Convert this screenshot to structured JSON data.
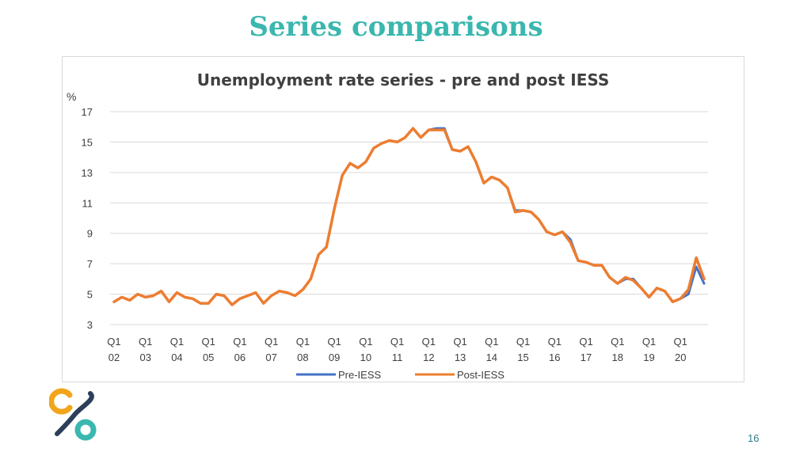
{
  "slide": {
    "title": "Series comparisons",
    "page_number": "16"
  },
  "colors": {
    "accent": "#3ab7ae",
    "pre_series": "#4472c4",
    "post_series": "#ed7d31",
    "logo_orange": "#f2a51a",
    "logo_teal": "#3ab7ae",
    "logo_navy": "#2c3e5a"
  },
  "chart_data": {
    "type": "line",
    "title": "Unemployment rate series - pre and post IESS",
    "ylabel": "%",
    "xlabel": "",
    "ylim": [
      3,
      17
    ],
    "yticks": [
      3,
      5,
      7,
      9,
      11,
      13,
      15,
      17
    ],
    "grid": true,
    "legend_position": "bottom",
    "x_tick_labels": [
      {
        "q": "Q1",
        "y": "02"
      },
      {
        "q": "Q1",
        "y": "03"
      },
      {
        "q": "Q1",
        "y": "04"
      },
      {
        "q": "Q1",
        "y": "05"
      },
      {
        "q": "Q1",
        "y": "06"
      },
      {
        "q": "Q1",
        "y": "07"
      },
      {
        "q": "Q1",
        "y": "08"
      },
      {
        "q": "Q1",
        "y": "09"
      },
      {
        "q": "Q1",
        "y": "10"
      },
      {
        "q": "Q1",
        "y": "11"
      },
      {
        "q": "Q1",
        "y": "12"
      },
      {
        "q": "Q1",
        "y": "13"
      },
      {
        "q": "Q1",
        "y": "14"
      },
      {
        "q": "Q1",
        "y": "15"
      },
      {
        "q": "Q1",
        "y": "16"
      },
      {
        "q": "Q1",
        "y": "17"
      },
      {
        "q": "Q1",
        "y": "18"
      },
      {
        "q": "Q1",
        "y": "19"
      },
      {
        "q": "Q1",
        "y": "20"
      }
    ],
    "x": [
      "Q1 02",
      "Q2 02",
      "Q3 02",
      "Q4 02",
      "Q1 03",
      "Q2 03",
      "Q3 03",
      "Q4 03",
      "Q1 04",
      "Q2 04",
      "Q3 04",
      "Q4 04",
      "Q1 05",
      "Q2 05",
      "Q3 05",
      "Q4 05",
      "Q1 06",
      "Q2 06",
      "Q3 06",
      "Q4 06",
      "Q1 07",
      "Q2 07",
      "Q3 07",
      "Q4 07",
      "Q1 08",
      "Q2 08",
      "Q3 08",
      "Q4 08",
      "Q1 09",
      "Q2 09",
      "Q3 09",
      "Q4 09",
      "Q1 10",
      "Q2 10",
      "Q3 10",
      "Q4 10",
      "Q1 11",
      "Q2 11",
      "Q3 11",
      "Q4 11",
      "Q1 12",
      "Q2 12",
      "Q3 12",
      "Q4 12",
      "Q1 13",
      "Q2 13",
      "Q3 13",
      "Q4 13",
      "Q1 14",
      "Q2 14",
      "Q3 14",
      "Q4 14",
      "Q1 15",
      "Q2 15",
      "Q3 15",
      "Q4 15",
      "Q1 16",
      "Q2 16",
      "Q3 16",
      "Q4 16",
      "Q1 17",
      "Q2 17",
      "Q3 17",
      "Q4 17",
      "Q1 18",
      "Q2 18",
      "Q3 18",
      "Q4 18",
      "Q1 19",
      "Q2 19",
      "Q3 19",
      "Q4 19",
      "Q1 20",
      "Q2 20",
      "Q3 20",
      "Q4 20"
    ],
    "series": [
      {
        "name": "Pre-IESS",
        "color": "#4472c4",
        "values": [
          4.5,
          4.8,
          4.6,
          5.0,
          4.8,
          4.9,
          5.2,
          4.5,
          5.1,
          4.8,
          4.7,
          4.4,
          4.4,
          5.0,
          4.9,
          4.3,
          4.7,
          4.9,
          5.1,
          4.4,
          4.9,
          5.2,
          5.1,
          4.9,
          5.3,
          6.0,
          7.6,
          8.1,
          10.6,
          12.8,
          13.6,
          13.3,
          13.7,
          14.6,
          14.9,
          15.1,
          15.0,
          15.3,
          15.9,
          15.3,
          15.8,
          15.9,
          15.9,
          14.5,
          14.4,
          14.7,
          13.7,
          12.3,
          12.7,
          12.5,
          12.0,
          10.5,
          10.5,
          10.4,
          9.9,
          9.1,
          8.9,
          9.1,
          8.6,
          7.2,
          7.1,
          6.9,
          6.9,
          6.1,
          5.7,
          6.0,
          6.0,
          5.4,
          4.8,
          5.4,
          5.2,
          4.5,
          4.7,
          5.0,
          6.8,
          5.7
        ]
      },
      {
        "name": "Post-IESS",
        "color": "#ed7d31",
        "values": [
          4.5,
          4.8,
          4.6,
          5.0,
          4.8,
          4.9,
          5.2,
          4.5,
          5.1,
          4.8,
          4.7,
          4.4,
          4.4,
          5.0,
          4.9,
          4.3,
          4.7,
          4.9,
          5.1,
          4.4,
          4.9,
          5.2,
          5.1,
          4.9,
          5.3,
          6.0,
          7.6,
          8.1,
          10.6,
          12.8,
          13.6,
          13.3,
          13.7,
          14.6,
          14.9,
          15.1,
          15.0,
          15.3,
          15.9,
          15.3,
          15.8,
          15.8,
          15.8,
          14.5,
          14.4,
          14.7,
          13.7,
          12.3,
          12.7,
          12.5,
          12.0,
          10.4,
          10.5,
          10.4,
          9.9,
          9.1,
          8.9,
          9.1,
          8.4,
          7.2,
          7.1,
          6.9,
          6.9,
          6.1,
          5.7,
          6.1,
          5.9,
          5.4,
          4.8,
          5.4,
          5.2,
          4.5,
          4.7,
          5.3,
          7.4,
          6.0
        ]
      }
    ]
  }
}
